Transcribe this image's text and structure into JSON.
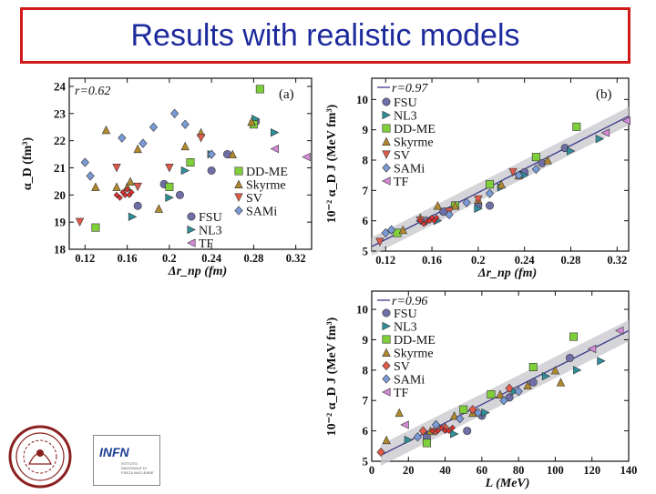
{
  "title": "Results with realistic models",
  "colors": {
    "FSU": "#6f6fa8",
    "NL3": "#2e8f9a",
    "DD-ME": "#7fcf3a",
    "Skyrme": "#b28a2e",
    "SV": "#e05a4a",
    "SAMi": "#7a9ad6",
    "TF": "#d48ad6",
    "RedSmall": "#e03030",
    "band": "#c9c9cf"
  },
  "chart_data": [
    {
      "id": "a",
      "type": "scatter",
      "panel_label": "(a)",
      "r_label": "r=0.62",
      "xlabel": "Δr_np (fm)",
      "ylabel": "α_D (fm³)",
      "xlim": [
        0.105,
        0.335
      ],
      "ylim": [
        18,
        24.3
      ],
      "xticks": [
        0.12,
        0.16,
        0.2,
        0.24,
        0.28,
        0.32
      ],
      "xtick_labels": [
        "0.12",
        "0.16",
        "0.2",
        "0.24",
        "0.28",
        "0.32"
      ],
      "yticks": [
        18,
        19,
        20,
        21,
        22,
        23,
        24
      ],
      "legend": [
        {
          "label": "DD-ME",
          "color": "#7fcf3a",
          "marker": "square"
        },
        {
          "label": "Skyrme",
          "color": "#b28a2e",
          "marker": "triangle-up"
        },
        {
          "label": "SV",
          "color": "#e05a4a",
          "marker": "triangle-down"
        },
        {
          "label": "SAMi",
          "color": "#7a9ad6",
          "marker": "diamond"
        },
        {
          "label": "FSU",
          "color": "#6f6fa8",
          "marker": "circle"
        },
        {
          "label": "NL3",
          "color": "#2e8f9a",
          "marker": "triangle-right"
        },
        {
          "label": "TF",
          "color": "#d48ad6",
          "marker": "triangle-left"
        }
      ],
      "series": [
        {
          "name": "FSU",
          "color": "#6f6fa8",
          "marker": "circle",
          "x": [
            0.17,
            0.195,
            0.21,
            0.24,
            0.255,
            0.282
          ],
          "y": [
            19.6,
            20.4,
            20.0,
            20.9,
            21.5,
            22.7
          ]
        },
        {
          "name": "NL3",
          "color": "#2e8f9a",
          "marker": "triangle-right",
          "x": [
            0.165,
            0.2,
            0.215,
            0.24,
            0.282,
            0.3
          ],
          "y": [
            19.2,
            19.9,
            20.9,
            21.5,
            22.8,
            22.3
          ]
        },
        {
          "name": "DD-ME",
          "color": "#7fcf3a",
          "marker": "square",
          "x": [
            0.13,
            0.2,
            0.22,
            0.28,
            0.286
          ],
          "y": [
            18.8,
            20.3,
            21.2,
            22.6,
            23.9
          ]
        },
        {
          "name": "Skyrme",
          "color": "#b28a2e",
          "marker": "triangle-up",
          "x": [
            0.13,
            0.14,
            0.15,
            0.16,
            0.163,
            0.17,
            0.19,
            0.215,
            0.23,
            0.26,
            0.278
          ],
          "y": [
            20.3,
            22.4,
            20.3,
            20.3,
            20.5,
            21.7,
            19.5,
            21.8,
            22.3,
            21.5,
            22.7
          ]
        },
        {
          "name": "SV",
          "color": "#e05a4a",
          "marker": "triangle-down",
          "x": [
            0.115,
            0.15,
            0.17,
            0.2,
            0.23
          ],
          "y": [
            19.0,
            21.0,
            20.3,
            21.0,
            22.1
          ]
        },
        {
          "name": "SAMi",
          "color": "#7a9ad6",
          "marker": "diamond",
          "x": [
            0.12,
            0.125,
            0.155,
            0.175,
            0.185,
            0.205,
            0.215,
            0.24
          ],
          "y": [
            21.2,
            20.7,
            22.1,
            21.9,
            22.5,
            23.0,
            22.6,
            21.5
          ]
        },
        {
          "name": "TF",
          "color": "#d48ad6",
          "marker": "triangle-left",
          "x": [
            0.3,
            0.33
          ],
          "y": [
            21.7,
            21.4
          ]
        },
        {
          "name": "RedSmall",
          "color": "#e03030",
          "marker": "diamond-small",
          "x": [
            0.15,
            0.153,
            0.156,
            0.158,
            0.16,
            0.162,
            0.164
          ],
          "y": [
            20.0,
            19.9,
            20.1,
            20.0,
            20.2,
            20.0,
            20.1
          ]
        }
      ]
    },
    {
      "id": "b",
      "type": "scatter",
      "panel_label": "(b)",
      "r_label": "r=0.97",
      "xlabel": "Δr_np (fm)",
      "ylabel": "10⁻² α_D J (MeV fm³)",
      "xlim": [
        0.108,
        0.33
      ],
      "ylim": [
        5,
        10.7
      ],
      "xticks": [
        0.12,
        0.16,
        0.2,
        0.24,
        0.28,
        0.32
      ],
      "xtick_labels": [
        "0.12",
        "0.16",
        "0.2",
        "0.24",
        "0.28",
        "0.32"
      ],
      "yticks": [
        5,
        6,
        7,
        8,
        9,
        10
      ],
      "fit": {
        "x": [
          0.108,
          0.33
        ],
        "y": [
          5.15,
          9.45
        ],
        "band_half_width": 0.3
      },
      "legend": [
        {
          "label": "FSU",
          "color": "#6f6fa8",
          "marker": "circle"
        },
        {
          "label": "NL3",
          "color": "#2e8f9a",
          "marker": "triangle-right"
        },
        {
          "label": "DD-ME",
          "color": "#7fcf3a",
          "marker": "square"
        },
        {
          "label": "Skyrme",
          "color": "#b28a2e",
          "marker": "triangle-up"
        },
        {
          "label": "SV",
          "color": "#e05a4a",
          "marker": "triangle-down"
        },
        {
          "label": "SAMi",
          "color": "#7a9ad6",
          "marker": "diamond"
        },
        {
          "label": "TF",
          "color": "#d48ad6",
          "marker": "triangle-left"
        }
      ],
      "series": [
        {
          "name": "FSU",
          "color": "#6f6fa8",
          "marker": "circle",
          "x": [
            0.17,
            0.2,
            0.21,
            0.24,
            0.255,
            0.275
          ],
          "y": [
            6.3,
            6.5,
            6.5,
            7.6,
            7.9,
            8.4
          ]
        },
        {
          "name": "NL3",
          "color": "#2e8f9a",
          "marker": "triangle-right",
          "x": [
            0.165,
            0.2,
            0.22,
            0.24,
            0.28,
            0.305
          ],
          "y": [
            6.0,
            6.4,
            7.1,
            7.5,
            8.3,
            8.7
          ]
        },
        {
          "name": "DD-ME",
          "color": "#7fcf3a",
          "marker": "square",
          "x": [
            0.13,
            0.18,
            0.21,
            0.25,
            0.285
          ],
          "y": [
            5.6,
            6.5,
            7.2,
            8.1,
            9.1
          ]
        },
        {
          "name": "Skyrme",
          "color": "#b28a2e",
          "marker": "triangle-up",
          "x": [
            0.135,
            0.15,
            0.165,
            0.18,
            0.2,
            0.22,
            0.235,
            0.26
          ],
          "y": [
            5.7,
            6.1,
            6.5,
            6.5,
            6.7,
            7.2,
            7.5,
            8.0
          ]
        },
        {
          "name": "SV",
          "color": "#e05a4a",
          "marker": "triangle-down",
          "x": [
            0.115,
            0.15,
            0.175,
            0.2,
            0.23
          ],
          "y": [
            5.3,
            6.0,
            6.3,
            6.7,
            7.6
          ]
        },
        {
          "name": "SAMi",
          "color": "#7a9ad6",
          "marker": "diamond",
          "x": [
            0.12,
            0.125,
            0.155,
            0.175,
            0.19,
            0.21,
            0.235,
            0.25
          ],
          "y": [
            5.6,
            5.7,
            6.0,
            6.2,
            6.6,
            6.9,
            7.5,
            7.7
          ]
        },
        {
          "name": "TF",
          "color": "#d48ad6",
          "marker": "triangle-left",
          "x": [
            0.31,
            0.328
          ],
          "y": [
            8.9,
            9.3
          ]
        },
        {
          "name": "RedSmall",
          "color": "#e03030",
          "marker": "diamond-small",
          "x": [
            0.15,
            0.153,
            0.156,
            0.158,
            0.16,
            0.162,
            0.164
          ],
          "y": [
            6.0,
            5.9,
            6.0,
            6.0,
            6.1,
            6.0,
            6.1
          ]
        }
      ]
    },
    {
      "id": "c",
      "type": "scatter",
      "panel_label": "",
      "r_label": "r=0.96",
      "xlabel": "L (MeV)",
      "ylabel": "10⁻² α_D J (MeV fm³)",
      "xlim": [
        0,
        140
      ],
      "ylim": [
        5,
        10.6
      ],
      "xticks": [
        0,
        20,
        40,
        60,
        80,
        100,
        120,
        140
      ],
      "xtick_labels": [
        "0",
        "20",
        "40",
        "60",
        "80",
        "100",
        "120",
        "140"
      ],
      "yticks": [
        5,
        6,
        7,
        8,
        9,
        10
      ],
      "fit": {
        "x": [
          5,
          140
        ],
        "y": [
          5.2,
          9.3
        ],
        "band_half_width": 0.35
      },
      "legend": [
        {
          "label": "FSU",
          "color": "#6f6fa8",
          "marker": "circle"
        },
        {
          "label": "NL3",
          "color": "#2e8f9a",
          "marker": "triangle-right"
        },
        {
          "label": "DD-ME",
          "color": "#7fcf3a",
          "marker": "square"
        },
        {
          "label": "Skyrme",
          "color": "#b28a2e",
          "marker": "triangle-up"
        },
        {
          "label": "SV",
          "color": "#e05a4a",
          "marker": "diamond"
        },
        {
          "label": "SAMi",
          "color": "#7a9ad6",
          "marker": "diamond"
        },
        {
          "label": "TF",
          "color": "#d48ad6",
          "marker": "triangle-left"
        }
      ],
      "series": [
        {
          "name": "FSU",
          "color": "#6f6fa8",
          "marker": "circle",
          "x": [
            30,
            52,
            60,
            75,
            88,
            108
          ],
          "y": [
            5.8,
            6.0,
            6.5,
            7.1,
            7.6,
            8.4
          ]
        },
        {
          "name": "NL3",
          "color": "#2e8f9a",
          "marker": "triangle-right",
          "x": [
            20,
            45,
            62,
            78,
            95,
            112,
            125
          ],
          "y": [
            5.7,
            5.9,
            6.6,
            7.3,
            7.8,
            8.0,
            8.3
          ]
        },
        {
          "name": "DD-ME",
          "color": "#7fcf3a",
          "marker": "square",
          "x": [
            30,
            50,
            65,
            88,
            110
          ],
          "y": [
            5.6,
            6.7,
            7.2,
            8.1,
            9.1
          ]
        },
        {
          "name": "Skyrme",
          "color": "#b28a2e",
          "marker": "triangle-up",
          "x": [
            8,
            15,
            32,
            45,
            55,
            70,
            85,
            100,
            103
          ],
          "y": [
            5.7,
            6.6,
            6.0,
            6.5,
            6.6,
            7.2,
            7.5,
            8.0,
            7.6
          ]
        },
        {
          "name": "SV",
          "color": "#e05a4a",
          "marker": "diamond",
          "x": [
            5,
            28,
            35,
            40,
            55,
            75
          ],
          "y": [
            5.3,
            6.0,
            6.0,
            6.1,
            6.7,
            7.4
          ]
        },
        {
          "name": "SAMi",
          "color": "#7a9ad6",
          "marker": "diamond",
          "x": [
            25,
            35,
            48,
            58,
            72,
            80
          ],
          "y": [
            5.8,
            6.2,
            6.4,
            6.6,
            7.0,
            7.3
          ]
        },
        {
          "name": "TF",
          "color": "#d48ad6",
          "marker": "triangle-left",
          "x": [
            18,
            120,
            135
          ],
          "y": [
            6.2,
            8.7,
            9.3
          ]
        },
        {
          "name": "RedSmall",
          "color": "#e03030",
          "marker": "diamond-small",
          "x": [
            33,
            36,
            38,
            40,
            42,
            44
          ],
          "y": [
            6.0,
            6.0,
            6.1,
            6.0,
            6.0,
            6.1
          ]
        }
      ]
    }
  ],
  "logos": {
    "left": "university-seal",
    "right_text": "INFN",
    "right_sub": "ISTITUTO NAZIONALE DI FISICA NUCLEARE"
  }
}
